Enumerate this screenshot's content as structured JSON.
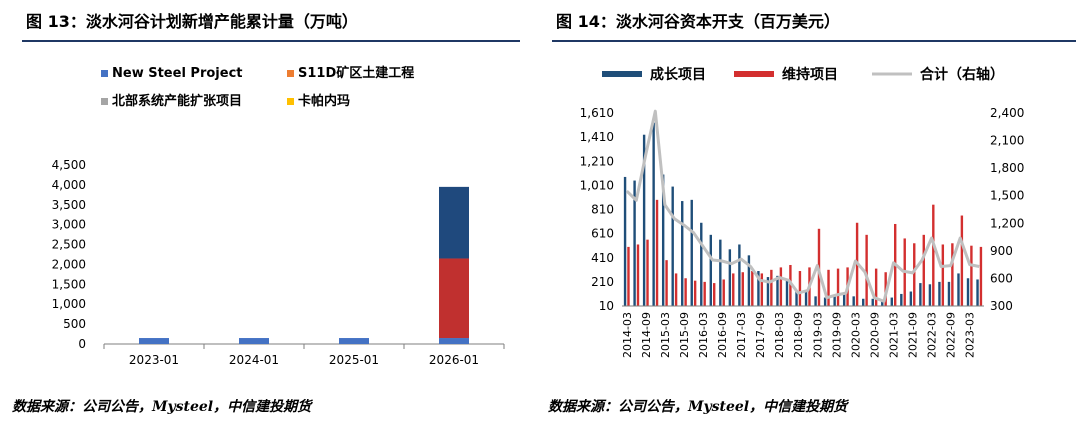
{
  "left": {
    "title": "图 13：淡水河谷计划新增产能累计量（万吨）",
    "source": "数据来源：公司公告，Mysteel，中信建投期货"
  },
  "right": {
    "title": "图 14：淡水河谷资本开支（百万美元）",
    "source": "数据来源：公司公告，Mysteel，中信建投期货"
  },
  "chart_data": [
    {
      "type": "bar",
      "stacked": true,
      "categories": [
        "2023-01",
        "2024-01",
        "2025-01",
        "2026-01"
      ],
      "series": [
        {
          "name": "New Steel Project",
          "color": "#4472c4",
          "values": [
            150,
            150,
            150,
            150
          ]
        },
        {
          "name": "S11D矿区土建工程",
          "color": "#ed7d31",
          "values": [
            0,
            0,
            0,
            0
          ]
        },
        {
          "name": "北部系统产能扩张项目",
          "color": "#a5a5a5",
          "values": [
            0,
            0,
            0,
            0
          ]
        },
        {
          "name": "卡帕内玛",
          "color": "#ffc000",
          "values": [
            0,
            0,
            0,
            0
          ]
        },
        {
          "name": "",
          "color": "#c0302f",
          "values": [
            0,
            0,
            0,
            2000
          ]
        },
        {
          "name": "",
          "color": "#1f497d",
          "values": [
            0,
            0,
            0,
            1800
          ]
        }
      ],
      "legend_position": "top",
      "ylim": [
        0,
        4500
      ],
      "yticks": [
        0,
        500,
        1000,
        1500,
        2000,
        2500,
        3000,
        3500,
        4000,
        4500
      ],
      "ytick_labels": [
        "0",
        "500",
        "1,000",
        "1,500",
        "2,000",
        "2,500",
        "3,000",
        "3,500",
        "4,000",
        "4,500"
      ],
      "grid": false
    },
    {
      "type": "bar+line",
      "x": [
        "2014-03",
        "2014-06",
        "2014-09",
        "2014-12",
        "2015-03",
        "2015-06",
        "2015-09",
        "2015-12",
        "2016-03",
        "2016-06",
        "2016-09",
        "2016-12",
        "2017-03",
        "2017-06",
        "2017-09",
        "2017-12",
        "2018-03",
        "2018-06",
        "2018-09",
        "2018-12",
        "2019-03",
        "2019-06",
        "2019-09",
        "2019-12",
        "2020-03",
        "2020-06",
        "2020-09",
        "2020-12",
        "2021-03",
        "2021-06",
        "2021-09",
        "2021-12",
        "2022-03",
        "2022-06",
        "2022-09",
        "2022-12",
        "2023-03",
        "2023-06"
      ],
      "xtick_labels": [
        "2014-03",
        "2014-09",
        "2015-03",
        "2015-09",
        "2016-03",
        "2016-09",
        "2017-03",
        "2017-09",
        "2018-03",
        "2018-09",
        "2019-03",
        "2019-09",
        "2020-03",
        "2020-09",
        "2021-03",
        "2021-09",
        "2022-03",
        "2022-09",
        "2023-03"
      ],
      "series": [
        {
          "name": "成长项目",
          "color": "#1f4e79",
          "axis": "left",
          "values": [
            1080,
            1050,
            1430,
            1530,
            1100,
            1000,
            880,
            890,
            700,
            600,
            560,
            480,
            520,
            430,
            300,
            250,
            260,
            230,
            140,
            140,
            90,
            80,
            100,
            110,
            90,
            70,
            70,
            60,
            80,
            110,
            130,
            200,
            190,
            210,
            210,
            280,
            240,
            230
          ]
        },
        {
          "name": "维持项目",
          "color": "#d32f2f",
          "axis": "left",
          "values": [
            500,
            520,
            560,
            890,
            390,
            280,
            240,
            220,
            210,
            200,
            230,
            280,
            290,
            300,
            280,
            310,
            330,
            350,
            300,
            330,
            650,
            310,
            320,
            330,
            700,
            600,
            320,
            290,
            690,
            570,
            530,
            600,
            850,
            520,
            530,
            760,
            510,
            500
          ]
        },
        {
          "name": "合计（右轴）",
          "color": "#c0c0c0",
          "axis": "right",
          "values": [
            1550,
            1450,
            1950,
            2420,
            1400,
            1250,
            1180,
            1100,
            950,
            800,
            790,
            760,
            810,
            730,
            580,
            560,
            610,
            580,
            440,
            470,
            740,
            390,
            420,
            440,
            790,
            670,
            390,
            350,
            770,
            680,
            660,
            800,
            1040,
            730,
            740,
            1040,
            750,
            730
          ]
        }
      ],
      "legend_position": "top",
      "ylim_left": [
        10,
        1610
      ],
      "yticks_left": [
        10,
        210,
        410,
        610,
        810,
        1010,
        1210,
        1410,
        1610
      ],
      "ytick_labels_left": [
        "10",
        "210",
        "410",
        "610",
        "810",
        "1,010",
        "1,210",
        "1,410",
        "1,610"
      ],
      "ylim_right": [
        300,
        2400
      ],
      "yticks_right": [
        300,
        600,
        900,
        1200,
        1500,
        1800,
        2100,
        2400
      ],
      "ytick_labels_right": [
        "300",
        "600",
        "900",
        "1,200",
        "1,500",
        "1,800",
        "2,100",
        "2,400"
      ],
      "grid": false
    }
  ]
}
